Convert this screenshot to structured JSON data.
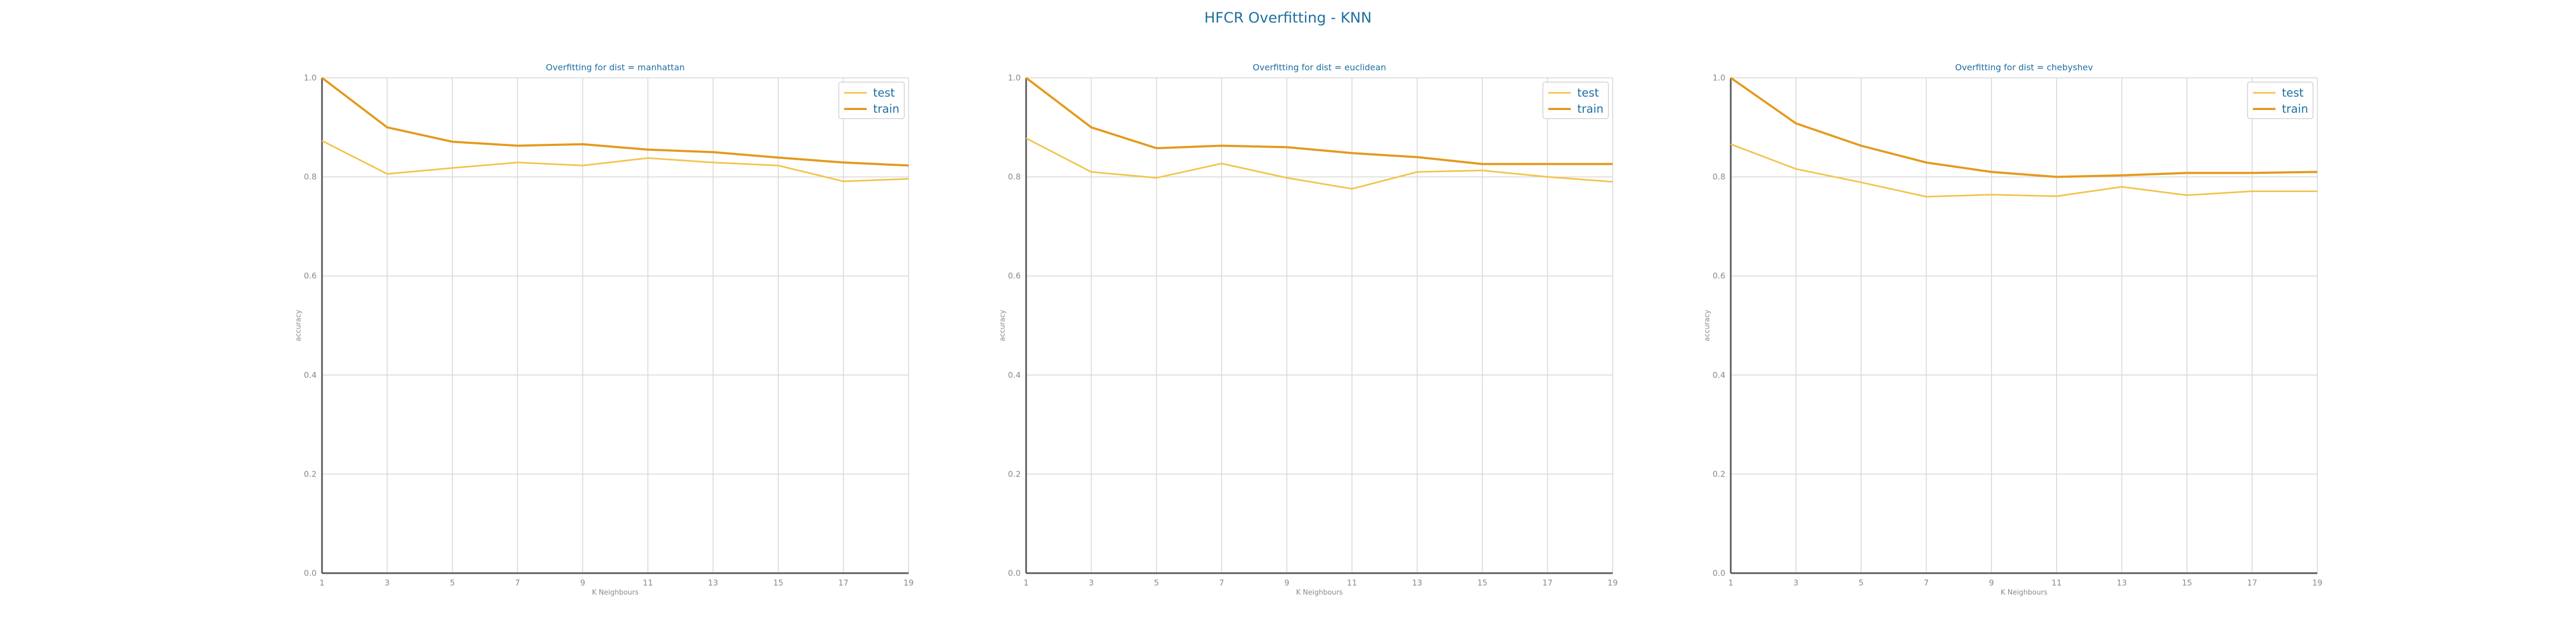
{
  "figure": {
    "title": "HFCR Overfitting - KNN"
  },
  "colors": {
    "title": "#1f6fa0",
    "test": "#f2c44d",
    "train": "#e49a1c",
    "grid": "#d5d5d5",
    "axis": "#555555",
    "tick": "#8a8a8a"
  },
  "chart_data": [
    {
      "type": "line",
      "title": "Overfitting for dist = manhattan",
      "xlabel": "K Neighbours",
      "ylabel": "accuracy",
      "x": [
        1,
        3,
        5,
        7,
        9,
        11,
        13,
        15,
        17,
        19
      ],
      "xticks": [
        "1",
        "3",
        "5",
        "7",
        "9",
        "11",
        "13",
        "15",
        "17",
        "19"
      ],
      "yticks": [
        "0.0",
        "0.2",
        "0.4",
        "0.6",
        "0.8",
        "1.0"
      ],
      "xlim": [
        1,
        19
      ],
      "ylim": [
        0,
        1
      ],
      "grid": true,
      "legend": "top-right",
      "series": [
        {
          "name": "test",
          "values": [
            0.873,
            0.806,
            0.818,
            0.829,
            0.823,
            0.838,
            0.829,
            0.823,
            0.791,
            0.796
          ]
        },
        {
          "name": "train",
          "values": [
            1.0,
            0.9,
            0.871,
            0.863,
            0.866,
            0.855,
            0.85,
            0.839,
            0.829,
            0.823
          ]
        }
      ]
    },
    {
      "type": "line",
      "title": "Overfitting for dist = euclidean",
      "xlabel": "K Neighbours",
      "ylabel": "accuracy",
      "x": [
        1,
        3,
        5,
        7,
        9,
        11,
        13,
        15,
        17,
        19
      ],
      "xticks": [
        "1",
        "3",
        "5",
        "7",
        "9",
        "11",
        "13",
        "15",
        "17",
        "19"
      ],
      "yticks": [
        "0.0",
        "0.2",
        "0.4",
        "0.6",
        "0.8",
        "1.0"
      ],
      "xlim": [
        1,
        19
      ],
      "ylim": [
        0,
        1
      ],
      "grid": true,
      "legend": "top-right",
      "series": [
        {
          "name": "test",
          "values": [
            0.878,
            0.81,
            0.798,
            0.827,
            0.798,
            0.776,
            0.81,
            0.813,
            0.8,
            0.79
          ]
        },
        {
          "name": "train",
          "values": [
            1.0,
            0.9,
            0.858,
            0.863,
            0.86,
            0.848,
            0.84,
            0.826,
            0.826,
            0.826
          ]
        }
      ]
    },
    {
      "type": "line",
      "title": "Overfitting for dist = chebyshev",
      "xlabel": "K Neighbours",
      "ylabel": "accuracy",
      "x": [
        1,
        3,
        5,
        7,
        9,
        11,
        13,
        15,
        17,
        19
      ],
      "xticks": [
        "1",
        "3",
        "5",
        "7",
        "9",
        "11",
        "13",
        "15",
        "17",
        "19"
      ],
      "yticks": [
        "0.0",
        "0.2",
        "0.4",
        "0.6",
        "0.8",
        "1.0"
      ],
      "xlim": [
        1,
        19
      ],
      "ylim": [
        0,
        1
      ],
      "grid": true,
      "legend": "top-right",
      "series": [
        {
          "name": "test",
          "values": [
            0.866,
            0.816,
            0.789,
            0.76,
            0.764,
            0.761,
            0.78,
            0.763,
            0.771,
            0.771
          ]
        },
        {
          "name": "train",
          "values": [
            1.0,
            0.908,
            0.863,
            0.829,
            0.81,
            0.8,
            0.803,
            0.808,
            0.808,
            0.81
          ]
        }
      ]
    }
  ]
}
